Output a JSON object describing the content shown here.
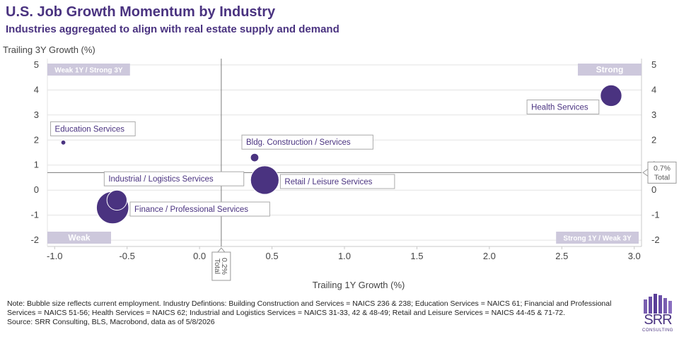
{
  "header": {
    "title": "U.S. Job Growth Momentum by Industry",
    "subtitle": "Industries aggregated to align with real estate supply and demand"
  },
  "chart_data": {
    "type": "scatter",
    "xlabel": "Trailing 1Y Growth (%)",
    "ylabel": "Trailing 3Y Growth (%)",
    "xlim": [
      -1.05,
      3.05
    ],
    "ylim": [
      -2.25,
      5.25
    ],
    "x_ticks": [
      {
        "value": -1.0,
        "label": "-1.0"
      },
      {
        "value": -0.5,
        "label": "-0.5"
      },
      {
        "value": 0.0,
        "label": "0.0"
      },
      {
        "value": 0.5,
        "label": "0.5"
      },
      {
        "value": 1.0,
        "label": "1.0"
      },
      {
        "value": 1.5,
        "label": "1.5"
      },
      {
        "value": 2.0,
        "label": "2.0"
      },
      {
        "value": 2.5,
        "label": "2.5"
      },
      {
        "value": 3.0,
        "label": "3.0"
      }
    ],
    "y_ticks": [
      {
        "value": 5,
        "label": "5"
      },
      {
        "value": 4,
        "label": "4"
      },
      {
        "value": 3,
        "label": "3"
      },
      {
        "value": 2,
        "label": "2"
      },
      {
        "value": 1,
        "label": "1"
      },
      {
        "value": 0,
        "label": "0"
      },
      {
        "value": -1,
        "label": "-1"
      },
      {
        "value": -2,
        "label": "-2"
      }
    ],
    "grid": true,
    "points": [
      {
        "label": "Health Services",
        "x": 2.84,
        "y": 3.77,
        "size": 0.4,
        "label_anchor": "left-below"
      },
      {
        "label": "Education Services",
        "x": -0.94,
        "y": 1.9,
        "size": 0.02,
        "label_anchor": "above"
      },
      {
        "label": "Bldg. Construction / Services",
        "x": 0.38,
        "y": 1.3,
        "size": 0.06,
        "label_anchor": "above"
      },
      {
        "label": "Retail / Leisure Services",
        "x": 0.45,
        "y": 0.4,
        "size": 0.7,
        "label_anchor": "right"
      },
      {
        "label": "Industrial / Logistics Services",
        "x": -0.57,
        "y": -0.4,
        "size": 0.35,
        "label_anchor": "above"
      },
      {
        "label": "Finance / Professional Services",
        "x": -0.6,
        "y": -0.7,
        "size": 0.9,
        "label_anchor": "right"
      }
    ],
    "reference_lines": [
      {
        "axis": "x",
        "value": 0.15,
        "label": "0.2%",
        "sublabel": "Total"
      },
      {
        "axis": "y",
        "value": 0.7,
        "label": "0.7%",
        "sublabel": "Total"
      }
    ],
    "quadrant_labels": [
      {
        "text": "Weak 1Y / Strong 3Y",
        "position": "top-left"
      },
      {
        "text": "Strong",
        "position": "top-right"
      },
      {
        "text": "Weak",
        "position": "bottom-left"
      },
      {
        "text": "Strong 1Y / Weak 3Y",
        "position": "bottom-right"
      }
    ],
    "colors": {
      "bubble": "#4a3380",
      "text": "#4a3380",
      "quadrant_box": "#cdc8dc",
      "grid": "#e3e3e3",
      "reference": "#7a7a7a"
    }
  },
  "notes": {
    "line1": "Note: Bubble size reflects current employment. Industry Defintions: Building Construction and Services = NAICS 236 & 238; Education Services = NAICS 61; Financial and Professional Services = NAICS 51-56; Health Services = NAICS 62; Industrial and Logistics Services = NAICS 31-33, 42 & 48-49; Retail and Leisure Services = NAICS 44-45 & 71-72.",
    "line2": "Source: SRR Consulting, BLS, Macrobond, data as of 5/8/2026"
  },
  "logo": {
    "text": "SRR",
    "subtext": "CONSULTING",
    "icon": "building-bars-icon"
  }
}
